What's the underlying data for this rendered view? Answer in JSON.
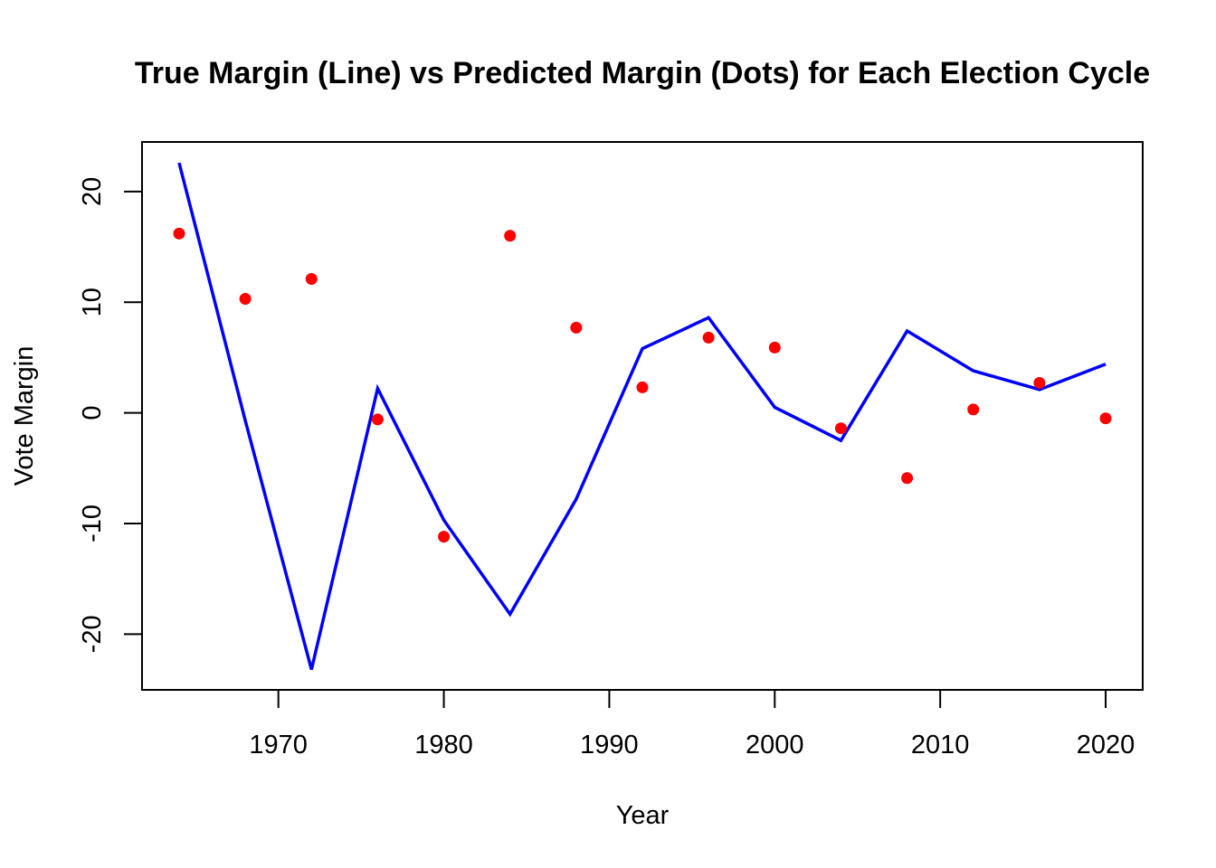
{
  "chart_data": {
    "type": "line",
    "title": "True Margin (Line) vs Predicted Margin (Dots) for Each Election Cycle",
    "xlabel": "Year",
    "ylabel": "Vote Margin",
    "xlim": [
      1961.76,
      2022.24
    ],
    "ylim": [
      -25.04,
      24.48
    ],
    "xticks": [
      1970,
      1980,
      1990,
      2000,
      2010,
      2020
    ],
    "yticks": [
      -20,
      -10,
      0,
      10,
      20
    ],
    "grid": false,
    "legend": "none",
    "x": [
      1964,
      1968,
      1972,
      1976,
      1980,
      1984,
      1988,
      1992,
      1996,
      2000,
      2004,
      2008,
      2012,
      2016,
      2020
    ],
    "series": [
      {
        "kind": "line",
        "color": "#0000ff",
        "values": [
          22.6,
          -0.7,
          -23.2,
          2.2,
          -9.7,
          -18.2,
          -7.8,
          5.8,
          8.6,
          0.5,
          -2.5,
          7.4,
          3.8,
          2.1,
          4.4
        ]
      },
      {
        "kind": "points",
        "color": "#ff0000",
        "values": [
          16.2,
          10.3,
          12.1,
          -0.6,
          -11.2,
          16.0,
          7.7,
          2.3,
          6.8,
          5.9,
          -1.4,
          -5.9,
          0.3,
          2.7,
          -0.5
        ]
      }
    ]
  }
}
